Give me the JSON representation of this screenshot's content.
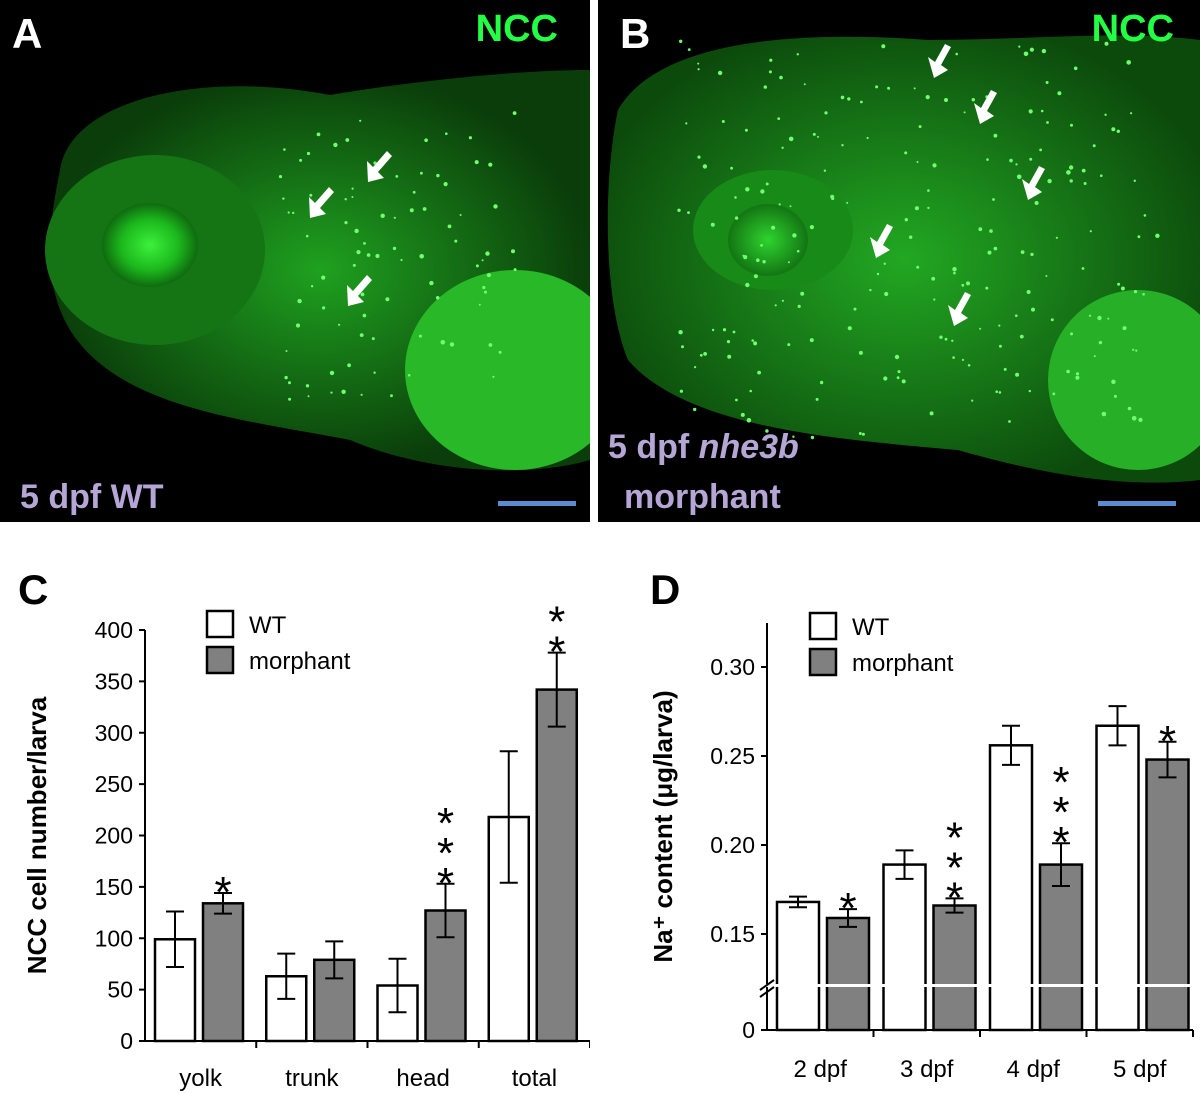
{
  "panels": {
    "A": {
      "letter": "A",
      "stain": "NCC",
      "label": "5 dpf WT"
    },
    "B": {
      "letter": "B",
      "stain": "NCC",
      "label_line1_plain": "5 dpf ",
      "label_line1_italic": "nhe3b",
      "label_line2": "morphant"
    }
  },
  "colors": {
    "wt_fill": "#ffffff",
    "morphant_fill": "#808080",
    "stain": "#22ff44",
    "label": "#b6a6d6",
    "scalebar": "#5b8bd0",
    "arrow": "#ffffff"
  },
  "chart_data": [
    {
      "panel": "C",
      "type": "bar",
      "title": "",
      "ylabel": "NCC cell number/larva",
      "xlabel": "",
      "categories": [
        "yolk",
        "trunk",
        "head",
        "total"
      ],
      "ylim": [
        0,
        400
      ],
      "yticks": [
        "0",
        "50",
        "100",
        "150",
        "200",
        "250",
        "300",
        "350",
        "400"
      ],
      "legend_position": "top-center",
      "series": [
        {
          "name": "WT",
          "values": [
            99,
            63,
            54,
            218
          ],
          "errors": [
            27,
            22,
            26,
            64
          ]
        },
        {
          "name": "morphant",
          "values": [
            134,
            79,
            127,
            342
          ],
          "errors": [
            10,
            18,
            26,
            36
          ]
        }
      ],
      "annotations": [
        {
          "category": "yolk",
          "series": "morphant",
          "text": "*"
        },
        {
          "category": "head",
          "series": "morphant",
          "text": "***"
        },
        {
          "category": "total",
          "series": "morphant",
          "text": "**"
        }
      ]
    },
    {
      "panel": "D",
      "type": "bar",
      "title": "",
      "ylabel": "Na⁺ content (μg/larva)",
      "xlabel": "",
      "categories": [
        "2 dpf",
        "3 dpf",
        "4 dpf",
        "5 dpf"
      ],
      "ylim": [
        0.12,
        0.32
      ],
      "axis_break": true,
      "yticks": [
        "0",
        "0.15",
        "0.20",
        "0.25",
        "0.30"
      ],
      "legend_position": "top-left",
      "series": [
        {
          "name": "WT",
          "values": [
            0.168,
            0.189,
            0.256,
            0.267
          ],
          "errors": [
            0.003,
            0.008,
            0.011,
            0.011
          ]
        },
        {
          "name": "morphant",
          "values": [
            0.159,
            0.166,
            0.189,
            0.248
          ],
          "errors": [
            0.005,
            0.004,
            0.012,
            0.01
          ]
        }
      ],
      "annotations": [
        {
          "category": "2 dpf",
          "series": "morphant",
          "text": "*"
        },
        {
          "category": "3 dpf",
          "series": "morphant",
          "text": "***"
        },
        {
          "category": "4 dpf",
          "series": "morphant",
          "text": "***"
        },
        {
          "category": "5 dpf",
          "series": "morphant",
          "text": "*"
        }
      ]
    }
  ]
}
